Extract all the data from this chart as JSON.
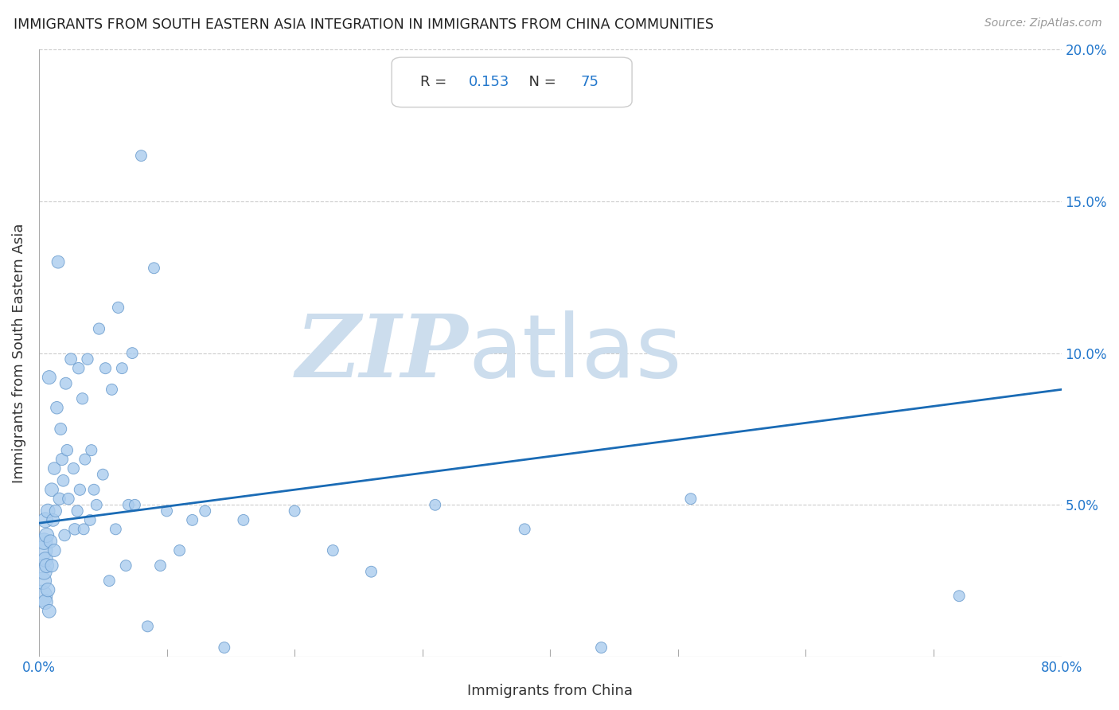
{
  "title": "IMMIGRANTS FROM SOUTH EASTERN ASIA INTEGRATION IN IMMIGRANTS FROM CHINA COMMUNITIES",
  "source": "Source: ZipAtlas.com",
  "xlabel": "Immigrants from China",
  "ylabel": "Immigrants from South Eastern Asia",
  "R": 0.153,
  "N": 75,
  "xlim": [
    0.0,
    0.8
  ],
  "ylim": [
    0.0,
    0.2
  ],
  "xticks": [
    0.0,
    0.1,
    0.2,
    0.3,
    0.4,
    0.5,
    0.6,
    0.7,
    0.8
  ],
  "xtick_labels": [
    "0.0%",
    "",
    "",
    "",
    "",
    "",
    "",
    "",
    "80.0%"
  ],
  "yticks": [
    0.0,
    0.05,
    0.1,
    0.15,
    0.2
  ],
  "ytick_labels": [
    "",
    "5.0%",
    "10.0%",
    "15.0%",
    "20.0%"
  ],
  "scatter_color": "#aaccee",
  "scatter_edge_color": "#6699cc",
  "line_color": "#1a6bb5",
  "grid_color": "#cccccc",
  "title_color": "#222222",
  "axis_label_color": "#2277cc",
  "annotation_box_color": "#333333",
  "annotation_val_color": "#2277cc",
  "watermark_zip_color": "#ccdded",
  "watermark_atlas_color": "#ccdded",
  "background_color": "#ffffff",
  "line_intercept": 0.044,
  "line_slope": 0.055,
  "x": [
    0.002,
    0.003,
    0.003,
    0.004,
    0.004,
    0.005,
    0.005,
    0.005,
    0.006,
    0.006,
    0.007,
    0.007,
    0.008,
    0.008,
    0.009,
    0.01,
    0.01,
    0.011,
    0.012,
    0.012,
    0.013,
    0.014,
    0.015,
    0.016,
    0.017,
    0.018,
    0.019,
    0.02,
    0.021,
    0.022,
    0.023,
    0.025,
    0.027,
    0.028,
    0.03,
    0.031,
    0.032,
    0.034,
    0.035,
    0.036,
    0.038,
    0.04,
    0.041,
    0.043,
    0.045,
    0.047,
    0.05,
    0.052,
    0.055,
    0.057,
    0.06,
    0.062,
    0.065,
    0.068,
    0.07,
    0.073,
    0.075,
    0.08,
    0.085,
    0.09,
    0.095,
    0.1,
    0.11,
    0.12,
    0.13,
    0.145,
    0.16,
    0.2,
    0.23,
    0.26,
    0.31,
    0.38,
    0.44,
    0.51,
    0.72
  ],
  "y": [
    0.02,
    0.035,
    0.025,
    0.038,
    0.028,
    0.032,
    0.018,
    0.045,
    0.03,
    0.04,
    0.022,
    0.048,
    0.015,
    0.092,
    0.038,
    0.03,
    0.055,
    0.045,
    0.062,
    0.035,
    0.048,
    0.082,
    0.13,
    0.052,
    0.075,
    0.065,
    0.058,
    0.04,
    0.09,
    0.068,
    0.052,
    0.098,
    0.062,
    0.042,
    0.048,
    0.095,
    0.055,
    0.085,
    0.042,
    0.065,
    0.098,
    0.045,
    0.068,
    0.055,
    0.05,
    0.108,
    0.06,
    0.095,
    0.025,
    0.088,
    0.042,
    0.115,
    0.095,
    0.03,
    0.05,
    0.1,
    0.05,
    0.165,
    0.01,
    0.128,
    0.03,
    0.048,
    0.035,
    0.045,
    0.048,
    0.003,
    0.045,
    0.048,
    0.035,
    0.028,
    0.05,
    0.042,
    0.003,
    0.052,
    0.02
  ],
  "sizes": [
    380,
    300,
    240,
    220,
    200,
    180,
    175,
    190,
    165,
    170,
    155,
    160,
    145,
    150,
    140,
    135,
    145,
    130,
    125,
    130,
    120,
    125,
    130,
    120,
    115,
    118,
    112,
    110,
    115,
    108,
    110,
    112,
    105,
    108,
    105,
    108,
    105,
    105,
    100,
    102,
    105,
    100,
    102,
    100,
    100,
    105,
    100,
    102,
    100,
    102,
    100,
    105,
    100,
    100,
    100,
    100,
    100,
    100,
    100,
    100,
    100,
    100,
    100,
    100,
    100,
    100,
    100,
    100,
    100,
    100,
    100,
    100,
    100,
    100,
    100
  ]
}
